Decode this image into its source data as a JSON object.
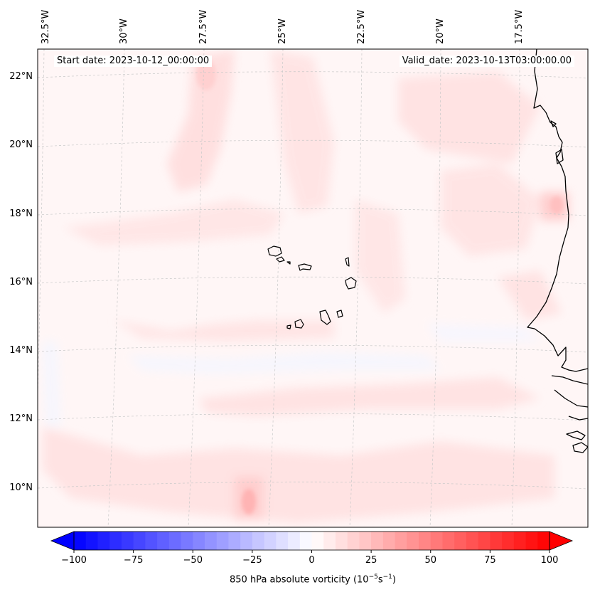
{
  "header": {
    "start_date": "Start date: 2023-10-12_00:00:00",
    "valid_date": "Valid_date: 2023-10-13T03:00:00.00"
  },
  "axes": {
    "lon_labels": [
      "32.5°W",
      "30°W",
      "27.5°W",
      "25°W",
      "22.5°W",
      "20°W",
      "17.5°W"
    ],
    "lat_labels": [
      "22°N",
      "20°N",
      "18°N",
      "16°N",
      "14°N",
      "12°N",
      "10°N"
    ]
  },
  "colorbar": {
    "label_main": "850 hPa absolute vorticity (10",
    "label_exp1": "−5",
    "label_mid": "s",
    "label_exp2": "−1",
    "label_end": ")",
    "ticks": [
      "−100",
      "−75",
      "−50",
      "−25",
      "0",
      "25",
      "50",
      "75",
      "100"
    ],
    "tick_values": [
      -100,
      -75,
      -50,
      -25,
      0,
      25,
      50,
      75,
      100
    ],
    "range": [
      -100,
      100
    ],
    "step": 5,
    "colormap": "bwr",
    "color_min": "#0000ff",
    "color_mid": "#ffffff",
    "color_max": "#ff0000"
  },
  "map": {
    "projection": "Lambert conformal",
    "lon_range": [
      -33,
      -15.5
    ],
    "lat_range": [
      9,
      22.8
    ],
    "gridlines": "dashed light gray",
    "coastline_color": "#000000",
    "field_background": "#fff5f5",
    "features": [
      "West African coastline",
      "Cape Verde islands"
    ]
  }
}
